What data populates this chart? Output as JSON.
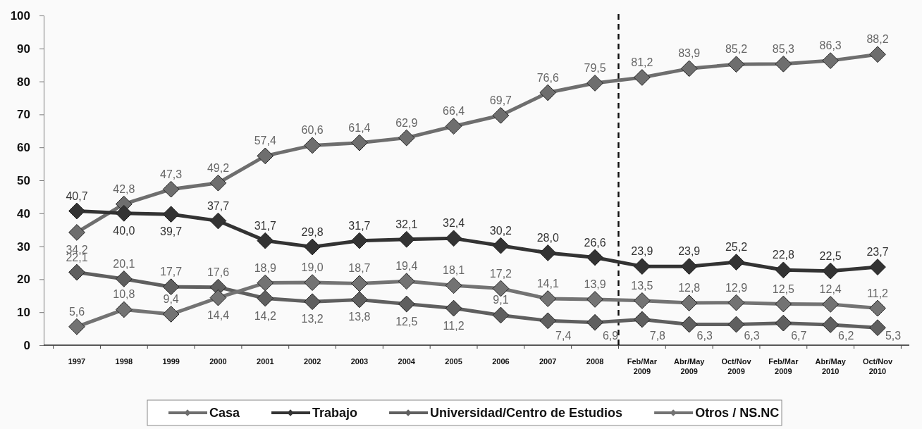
{
  "chart_data": {
    "type": "line",
    "categories": [
      "1997",
      "1998",
      "1999",
      "2000",
      "2001",
      "2002",
      "2003",
      "2004",
      "2005",
      "2006",
      "2007",
      "2008",
      "Feb/Mar 2009",
      "Abr/May 2009",
      "Oct/Nov 2009",
      "Feb/Mar 2009",
      "Abr/May 2010",
      "Oct/Nov 2010"
    ],
    "series": [
      {
        "name": "Casa",
        "color": "#6e6e6e",
        "values": [
          34.2,
          42.8,
          47.3,
          49.2,
          57.4,
          60.6,
          61.4,
          62.9,
          66.4,
          69.7,
          76.6,
          79.5,
          81.2,
          83.9,
          85.2,
          85.3,
          86.3,
          88.2
        ],
        "value_labels": [
          "34,2",
          "42,8",
          "47,3",
          "49,2",
          "57,4",
          "60,6",
          "61,4",
          "62,9",
          "66,4",
          "69,7",
          "76,6",
          "79,5",
          "81,2",
          "83,9",
          "85,2",
          "85,3",
          "86,3",
          "88,2"
        ]
      },
      {
        "name": "Trabajo",
        "color": "#333333",
        "values": [
          40.7,
          40.0,
          39.7,
          37.7,
          31.7,
          29.8,
          31.7,
          32.1,
          32.4,
          30.2,
          28.0,
          26.6,
          23.9,
          23.9,
          25.2,
          22.8,
          22.5,
          23.7
        ],
        "value_labels": [
          "40,7",
          "40,0",
          "39,7",
          "37,7",
          "31,7",
          "29,8",
          "31,7",
          "32,1",
          "32,4",
          "30,2",
          "28,0",
          "26,6",
          "23,9",
          "23,9",
          "25,2",
          "22,8",
          "22,5",
          "23,7"
        ]
      },
      {
        "name": "Universidad/Centro de Estudios",
        "color": "#5f5f5f",
        "values": [
          22.1,
          20.1,
          17.7,
          17.6,
          14.2,
          13.2,
          13.8,
          12.5,
          11.2,
          9.1,
          7.4,
          6.9,
          7.8,
          6.3,
          6.3,
          6.7,
          6.2,
          5.3
        ],
        "value_labels": [
          "22,1",
          "20,1",
          "17,7",
          "17,6",
          "14,2",
          "13,2",
          "13,8",
          "12,5",
          "11,2",
          "9,1",
          "7,4",
          "6,9",
          "7,8",
          "6,3",
          "6,3",
          "6,7",
          "6,2",
          "5,3"
        ]
      },
      {
        "name": "Otros / NS.NC",
        "color": "#737373",
        "values": [
          5.6,
          10.8,
          9.4,
          14.4,
          18.9,
          19.0,
          18.7,
          19.4,
          18.1,
          17.2,
          14.1,
          13.9,
          13.5,
          12.8,
          12.9,
          12.5,
          12.4,
          11.2
        ],
        "value_labels": [
          "5,6",
          "10,8",
          "9,4",
          "14,4",
          "18,9",
          "19,0",
          "18,7",
          "19,4",
          "18,1",
          "17,2",
          "14,1",
          "13,9",
          "13,5",
          "12,8",
          "12,9",
          "12,5",
          "12,4",
          "11,2"
        ]
      }
    ],
    "ylim": [
      0,
      100
    ],
    "yticks": [
      0,
      10,
      20,
      30,
      40,
      50,
      60,
      70,
      80,
      90,
      100
    ],
    "marker": "diamond",
    "line_style": "solid",
    "legend": "bottom"
  }
}
